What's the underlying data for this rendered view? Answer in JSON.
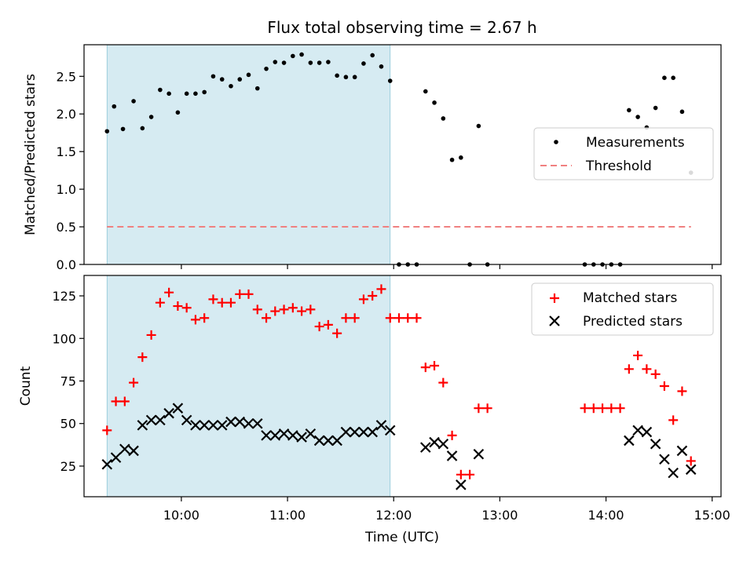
{
  "chart_data": [
    {
      "type": "scatter",
      "title": "Flux total observing time = 2.67 h",
      "ylabel": "Matched/Predicted stars",
      "xlabel": "",
      "xlim": [
        "09:05",
        "15:05"
      ],
      "ylim": [
        0,
        2.92
      ],
      "yticks": [
        "0.0",
        "0.5",
        "1.0",
        "1.5",
        "2.0",
        "2.5"
      ],
      "shaded_region": {
        "x0": "09:18",
        "x1": "11:58",
        "color": "#add8e6"
      },
      "legend": {
        "position": "right",
        "entries": [
          "Measurements",
          "Threshold"
        ]
      },
      "series": [
        {
          "name": "Measurements",
          "marker": "dot",
          "color": "#000000",
          "x": [
            "09:18",
            "09:22",
            "09:27",
            "09:33",
            "09:38",
            "09:43",
            "09:48",
            "09:53",
            "09:58",
            "10:03",
            "10:08",
            "10:13",
            "10:18",
            "10:23",
            "10:28",
            "10:33",
            "10:38",
            "10:43",
            "10:48",
            "10:53",
            "10:58",
            "11:03",
            "11:08",
            "11:13",
            "11:18",
            "11:23",
            "11:28",
            "11:33",
            "11:38",
            "11:43",
            "11:48",
            "11:53",
            "11:58",
            "12:03",
            "12:08",
            "12:13",
            "12:18",
            "12:23",
            "12:28",
            "12:33",
            "12:38",
            "12:43",
            "12:48",
            "12:53",
            "13:48",
            "13:53",
            "13:58",
            "14:03",
            "14:08",
            "14:13",
            "14:18",
            "14:23",
            "14:28",
            "14:33",
            "14:38",
            "14:43",
            "14:48"
          ],
          "y": [
            1.77,
            2.1,
            1.8,
            2.17,
            1.81,
            1.96,
            2.32,
            2.27,
            2.02,
            2.27,
            2.27,
            2.29,
            2.5,
            2.46,
            2.37,
            2.46,
            2.52,
            2.34,
            2.6,
            2.69,
            2.68,
            2.77,
            2.79,
            2.68,
            2.68,
            2.69,
            2.51,
            2.49,
            2.49,
            2.67,
            2.78,
            2.63,
            2.44,
            0,
            0,
            0,
            2.3,
            2.15,
            1.94,
            1.39,
            1.42,
            0,
            1.84,
            0,
            0,
            0,
            0,
            0,
            0,
            2.05,
            1.96,
            1.82,
            2.08,
            2.48,
            2.48,
            2.03,
            1.22
          ]
        },
        {
          "name": "Threshold",
          "style": "dashed",
          "color": "#f08080",
          "x": [
            "09:18",
            "14:48"
          ],
          "y": [
            0.5,
            0.5
          ]
        }
      ]
    },
    {
      "type": "scatter",
      "title": "",
      "xlabel": "Time (UTC)",
      "ylabel": "Count",
      "xlim": [
        "09:05",
        "15:05"
      ],
      "ylim": [
        7,
        137
      ],
      "yticks": [
        "25",
        "50",
        "75",
        "100",
        "125"
      ],
      "xticks": [
        "10:00",
        "11:00",
        "12:00",
        "13:00",
        "14:00",
        "15:00"
      ],
      "shaded_region": {
        "x0": "09:18",
        "x1": "11:58",
        "color": "#add8e6"
      },
      "legend": {
        "position": "top-right",
        "entries": [
          "Matched stars",
          "Predicted stars"
        ]
      },
      "series": [
        {
          "name": "Matched stars",
          "marker": "plus",
          "color": "#ff0000",
          "x": [
            "09:18",
            "09:23",
            "09:28",
            "09:33",
            "09:38",
            "09:43",
            "09:48",
            "09:53",
            "09:58",
            "10:03",
            "10:08",
            "10:13",
            "10:18",
            "10:23",
            "10:28",
            "10:33",
            "10:38",
            "10:43",
            "10:48",
            "10:53",
            "10:58",
            "11:03",
            "11:08",
            "11:13",
            "11:18",
            "11:23",
            "11:28",
            "11:33",
            "11:38",
            "11:43",
            "11:48",
            "11:53",
            "11:58",
            "12:03",
            "12:08",
            "12:13",
            "12:18",
            "12:23",
            "12:28",
            "12:33",
            "12:38",
            "12:43",
            "12:48",
            "12:53",
            "13:48",
            "13:53",
            "13:58",
            "14:03",
            "14:08",
            "14:13",
            "14:18",
            "14:23",
            "14:28",
            "14:33",
            "14:38",
            "14:43",
            "14:48"
          ],
          "y": [
            46,
            63,
            63,
            74,
            89,
            102,
            121,
            127,
            119,
            118,
            111,
            112,
            123,
            121,
            121,
            126,
            126,
            117,
            112,
            116,
            117,
            118,
            116,
            117,
            107,
            108,
            103,
            112,
            112,
            123,
            125,
            129,
            112,
            112,
            112,
            112,
            83,
            84,
            74,
            43,
            20,
            20,
            59,
            59,
            59,
            59,
            59,
            59,
            59,
            82,
            90,
            82,
            79,
            72,
            52,
            69,
            28
          ]
        },
        {
          "name": "Predicted stars",
          "marker": "x",
          "color": "#000000",
          "x": [
            "09:18",
            "09:23",
            "09:28",
            "09:33",
            "09:38",
            "09:43",
            "09:48",
            "09:53",
            "09:58",
            "10:03",
            "10:08",
            "10:13",
            "10:18",
            "10:23",
            "10:28",
            "10:33",
            "10:38",
            "10:43",
            "10:48",
            "10:53",
            "10:58",
            "11:03",
            "11:08",
            "11:13",
            "11:18",
            "11:23",
            "11:28",
            "11:33",
            "11:38",
            "11:43",
            "11:48",
            "11:53",
            "11:58",
            "12:18",
            "12:23",
            "12:28",
            "12:33",
            "12:38",
            "12:48",
            "14:13",
            "14:18",
            "14:23",
            "14:28",
            "14:33",
            "14:38",
            "14:43",
            "14:48"
          ],
          "y": [
            26,
            30,
            35,
            34,
            49,
            52,
            52,
            56,
            59,
            52,
            49,
            49,
            49,
            49,
            51,
            51,
            50,
            50,
            43,
            43,
            44,
            43,
            42,
            44,
            40,
            40,
            40,
            45,
            45,
            45,
            45,
            49,
            46,
            36,
            39,
            38,
            31,
            14,
            32,
            40,
            46,
            45,
            38,
            29,
            21,
            34,
            23
          ]
        }
      ]
    }
  ]
}
